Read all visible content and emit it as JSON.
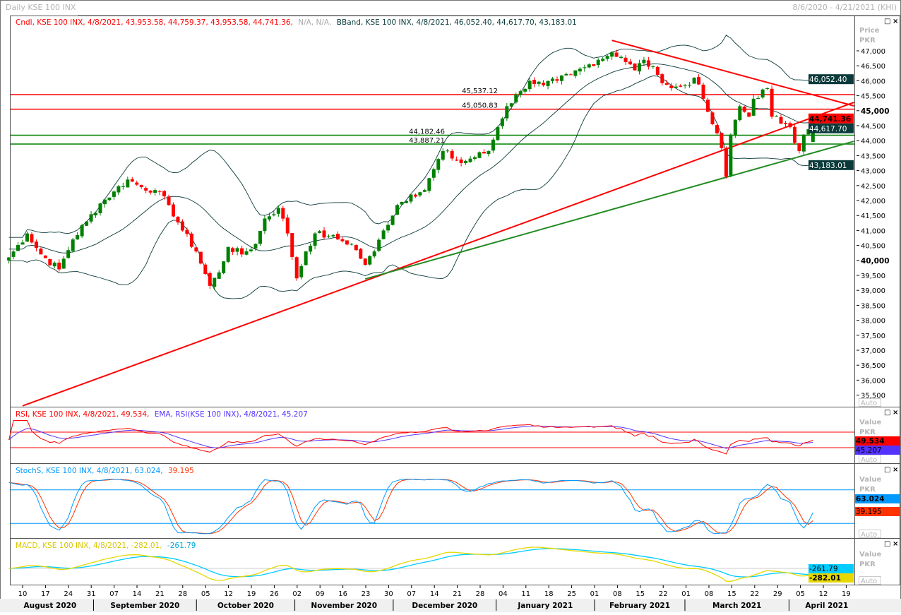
{
  "header": {
    "title": "Daily KSE 100 INX",
    "range": "8/6/2020 - 4/21/2021 (KHI)"
  },
  "legend": {
    "cndl": "Cndl, KSE 100 INX, 4/8/2021, 43,953.58, 44,759.37, 43,953.58, 44,741.36,",
    "na": "N/A, N/A,",
    "bband": "BBand, KSE 100 INX, 4/8/2021, 46,052.40, 44,617.70, 43,183.01",
    "rsi": "RSI, KSE 100 INX, 4/8/2021, 49.534,",
    "ema": "EMA, RSI(KSE 100 INX), 4/8/2021, 45.207",
    "stoch_a": "StochS, KSE 100 INX, 4/8/2021, 63.024,",
    "stoch_b": "39.195",
    "macd_a": "MACD, KSE 100 INX, 4/8/2021, -282.01,",
    "macd_b": "-261.79"
  },
  "axis": {
    "price_title": "Price",
    "currency": "PKR",
    "value_title": "Value",
    "auto": "Auto",
    "price_ticks": [
      "47,000",
      "46,500",
      "46,000",
      "45,500",
      "45,000",
      "44,500",
      "44,000",
      "43,500",
      "43,000",
      "42,500",
      "42,000",
      "41,500",
      "41,000",
      "40,500",
      "40,000",
      "39,500",
      "39,000",
      "38,500",
      "38,000",
      "37,500",
      "37,000",
      "36,500",
      "36,000",
      "35,500"
    ],
    "price_tick_values": [
      47000,
      46500,
      46000,
      45500,
      45000,
      44500,
      44000,
      43500,
      43000,
      42500,
      42000,
      41500,
      41000,
      40500,
      40000,
      39500,
      39000,
      38500,
      38000,
      37500,
      37000,
      36500,
      36000,
      35500
    ],
    "bold_ticks": [
      "45,000",
      "40,000"
    ],
    "week_labels": [
      "10",
      "17",
      "24",
      "31",
      "07",
      "14",
      "21",
      "28",
      "05",
      "12",
      "19",
      "26",
      "02",
      "09",
      "16",
      "23",
      "30",
      "07",
      "14",
      "21",
      "28",
      "04",
      "11",
      "18",
      "25",
      "01",
      "08",
      "15",
      "22",
      "01",
      "08",
      "15",
      "22",
      "29",
      "05",
      "12",
      "19"
    ],
    "months": [
      {
        "label": "August 2020",
        "start": -0.7,
        "end": 3.1
      },
      {
        "label": "September 2020",
        "start": 3.1,
        "end": 7.6
      },
      {
        "label": "October 2020",
        "start": 7.6,
        "end": 11.9
      },
      {
        "label": "November 2020",
        "start": 11.9,
        "end": 16.2
      },
      {
        "label": "December 2020",
        "start": 16.2,
        "end": 20.7
      },
      {
        "label": "January 2021",
        "start": 20.7,
        "end": 25.0
      },
      {
        "label": "February 2021",
        "start": 25.0,
        "end": 28.95
      },
      {
        "label": "March 2021",
        "start": 28.95,
        "end": 33.5
      },
      {
        "label": "April 2021",
        "start": 33.5,
        "end": 36.8
      }
    ]
  },
  "tags": {
    "bb_upper": "46,052.40",
    "last": "44,741.36",
    "bb_mid": "44,617.70",
    "bb_lower": "43,183.01",
    "rsi": "49.534",
    "rsi_ema": "45.207",
    "stoch_k": "63.024",
    "stoch_d": "39.195",
    "macd_signal": "-261.79",
    "macd": "-282.01"
  },
  "colors": {
    "up": "#008000",
    "down": "#ff0000",
    "bb": "#0b3a3a",
    "rsi": "#ff0000",
    "ema": "#5533ff",
    "stoch_k": "#0099ff",
    "stoch_d": "#ff3300",
    "macd_a": "#00ccff",
    "macd_b": "#e6d800"
  },
  "chart_data": {
    "type": "candlestick",
    "title": "Daily KSE 100 INX",
    "ylabel": "Price PKR",
    "ylim": [
      35100,
      47900
    ],
    "x_unit": "trading days since 2020-08-10",
    "close_keyframes": [
      [
        -3,
        40100
      ],
      [
        1,
        40900
      ],
      [
        4,
        40200
      ],
      [
        8,
        39700
      ],
      [
        11,
        40700
      ],
      [
        14,
        41300
      ],
      [
        17,
        41900
      ],
      [
        20,
        42300
      ],
      [
        23,
        42700
      ],
      [
        26,
        42450
      ],
      [
        29,
        42350
      ],
      [
        32,
        41850
      ],
      [
        35,
        41000
      ],
      [
        38,
        40300
      ],
      [
        41,
        39150
      ],
      [
        43,
        39600
      ],
      [
        45,
        40450
      ],
      [
        48,
        40200
      ],
      [
        51,
        40550
      ],
      [
        53,
        41400
      ],
      [
        56,
        41750
      ],
      [
        58,
        40900
      ],
      [
        60,
        39400
      ],
      [
        62,
        40300
      ],
      [
        64,
        40900
      ],
      [
        67,
        40800
      ],
      [
        69,
        40700
      ],
      [
        72,
        40550
      ],
      [
        75,
        39850
      ],
      [
        77,
        40300
      ],
      [
        79,
        41000
      ],
      [
        82,
        41850
      ],
      [
        85,
        42200
      ],
      [
        88,
        42350
      ],
      [
        90,
        43050
      ],
      [
        92,
        43650
      ],
      [
        96,
        43250
      ],
      [
        98,
        43400
      ],
      [
        102,
        43650
      ],
      [
        104,
        44450
      ],
      [
        106,
        45150
      ],
      [
        109,
        45650
      ],
      [
        111,
        46000
      ],
      [
        114,
        45850
      ],
      [
        117,
        46000
      ],
      [
        120,
        46200
      ],
      [
        123,
        46450
      ],
      [
        126,
        46700
      ],
      [
        129,
        46950
      ],
      [
        131,
        46800
      ],
      [
        134,
        46350
      ],
      [
        136,
        46700
      ],
      [
        139,
        46200
      ],
      [
        142,
        45750
      ],
      [
        145,
        45850
      ],
      [
        147,
        46100
      ],
      [
        149,
        45400
      ],
      [
        151,
        44550
      ],
      [
        153,
        43750
      ],
      [
        154,
        42800
      ],
      [
        155,
        44200
      ],
      [
        157,
        45150
      ],
      [
        159,
        44800
      ],
      [
        160,
        45400
      ],
      [
        163,
        45750
      ],
      [
        164,
        44800
      ],
      [
        167,
        44550
      ],
      [
        168,
        44450
      ],
      [
        170,
        43650
      ],
      [
        171,
        44200
      ],
      [
        173,
        44741.36
      ]
    ],
    "last_candle": {
      "date": "4/8/2021",
      "open": 43953.58,
      "high": 44759.37,
      "low": 43953.58,
      "close": 44741.36
    },
    "bollinger": {
      "period": 20,
      "upper": 46052.4,
      "middle": 44617.7,
      "lower": 43183.01
    },
    "horizontal_levels": [
      {
        "label": "45,537.12",
        "value": 45537.12,
        "color": "red"
      },
      {
        "label": "45,050.83",
        "value": 45050.83,
        "color": "red"
      },
      {
        "label": "44,182.46",
        "value": 44182.46,
        "color": "green"
      },
      {
        "label": "43,887.21",
        "value": 43887.21,
        "color": "green"
      }
    ],
    "trendlines": [
      {
        "name": "red-ascending",
        "from": [
          0,
          35140
        ],
        "to": [
          182,
          45280
        ],
        "color": "red"
      },
      {
        "name": "red-descending",
        "from": [
          129,
          47350
        ],
        "to": [
          182,
          45160
        ],
        "color": "red"
      },
      {
        "name": "green-ascending",
        "from": [
          75,
          39380
        ],
        "to": [
          182,
          43980
        ],
        "color": "green"
      }
    ],
    "rsi": {
      "last": 49.534,
      "ema_last": 45.207,
      "levels": [
        70,
        30
      ]
    },
    "stochastic": {
      "k_last": 63.024,
      "d_last": 39.195,
      "levels": [
        80,
        20
      ]
    },
    "macd": {
      "macd_last": -282.01,
      "signal_last": -261.79
    }
  }
}
